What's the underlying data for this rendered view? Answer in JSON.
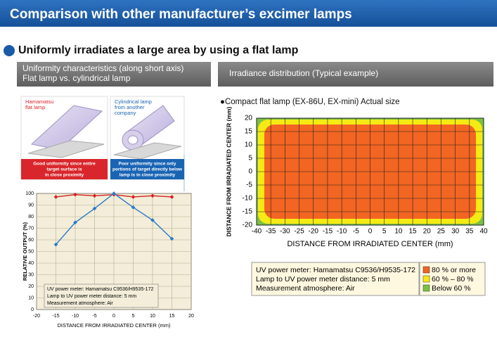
{
  "header": {
    "title": "Comparison with other manufacturer’s excimer lamps"
  },
  "subtitle": "Uniformly irradiates a large area by using a flat lamp",
  "left": {
    "heading": [
      "Uniformity characteristics (along short axis)",
      "Flat lamp vs. cylindrical lamp"
    ],
    "cards": [
      {
        "title": [
          "Hamamatsu",
          "flat lamp"
        ],
        "caption": [
          "Good uniformity since entire",
          "target surface is",
          "in close proximity"
        ],
        "color": "#d9262c"
      },
      {
        "title": [
          "Cylindrical lamp",
          "from another",
          "company"
        ],
        "caption": [
          "Poor uniformity since only",
          "portions of target directly below",
          "lamp is in close proximity"
        ],
        "color": "#1a64b4"
      }
    ],
    "chart": {
      "type": "line",
      "y_label": "RELATIVE OUTPUT (%)",
      "x_label": "DISTANCE FROM IRRADIATED CENTER (mm)",
      "x": [
        -15,
        -10,
        -5,
        0,
        5,
        10,
        15
      ],
      "series": [
        {
          "color": "#d42020",
          "values": [
            97,
            99,
            98,
            99,
            97,
            98,
            97
          ]
        },
        {
          "color": "#2a7ac8",
          "values": [
            56,
            75,
            87,
            100,
            88,
            77,
            61
          ]
        }
      ],
      "xlim": [
        -20,
        20
      ],
      "xticks": [
        -20,
        -15,
        -10,
        -5,
        0,
        5,
        10,
        15,
        20
      ],
      "ylim": [
        0,
        100
      ],
      "yticks": [
        0,
        10,
        20,
        30,
        40,
        50,
        60,
        70,
        80,
        90,
        100
      ],
      "grid": true,
      "notes": [
        "UV power meter: Hamamatsu C9536/H9535-172",
        "Lamp to UV power meter distance: 5 mm",
        "Measurement atmosphere: Air"
      ]
    }
  },
  "right": {
    "heading": "Irradiance distribution (Typical example)",
    "caption": "●Compact flat lamp (EX-86U, EX-mini)   Actual size",
    "map": {
      "type": "heatmap",
      "x_label": "DISTANCE FROM IRRADIATED CENTER (mm)",
      "y_label": "DISTANCE FROM IRRADIATED CENTER (mm)",
      "xlim": [
        -40,
        40
      ],
      "xticks": [
        -40,
        -35,
        -30,
        -25,
        -20,
        -15,
        -10,
        -5,
        0,
        5,
        10,
        15,
        20,
        25,
        30,
        35,
        40
      ],
      "ylim": [
        -20,
        20
      ],
      "yticks": [
        -20,
        -15,
        -10,
        -5,
        0,
        5,
        10,
        15,
        20
      ],
      "grid": true
    },
    "notes": [
      "UV power meter: Hamamatsu C9536/H9535-172",
      "Lamp to UV power meter distance: 5 mm",
      "Measurement atmosphere: Air"
    ],
    "legend": [
      {
        "label": "80 % or more",
        "color": "#f26522"
      },
      {
        "label": "60 % – 80 %",
        "color": "#f5ea14"
      },
      {
        "label": "Below 60 %",
        "color": "#7ac143"
      }
    ]
  }
}
